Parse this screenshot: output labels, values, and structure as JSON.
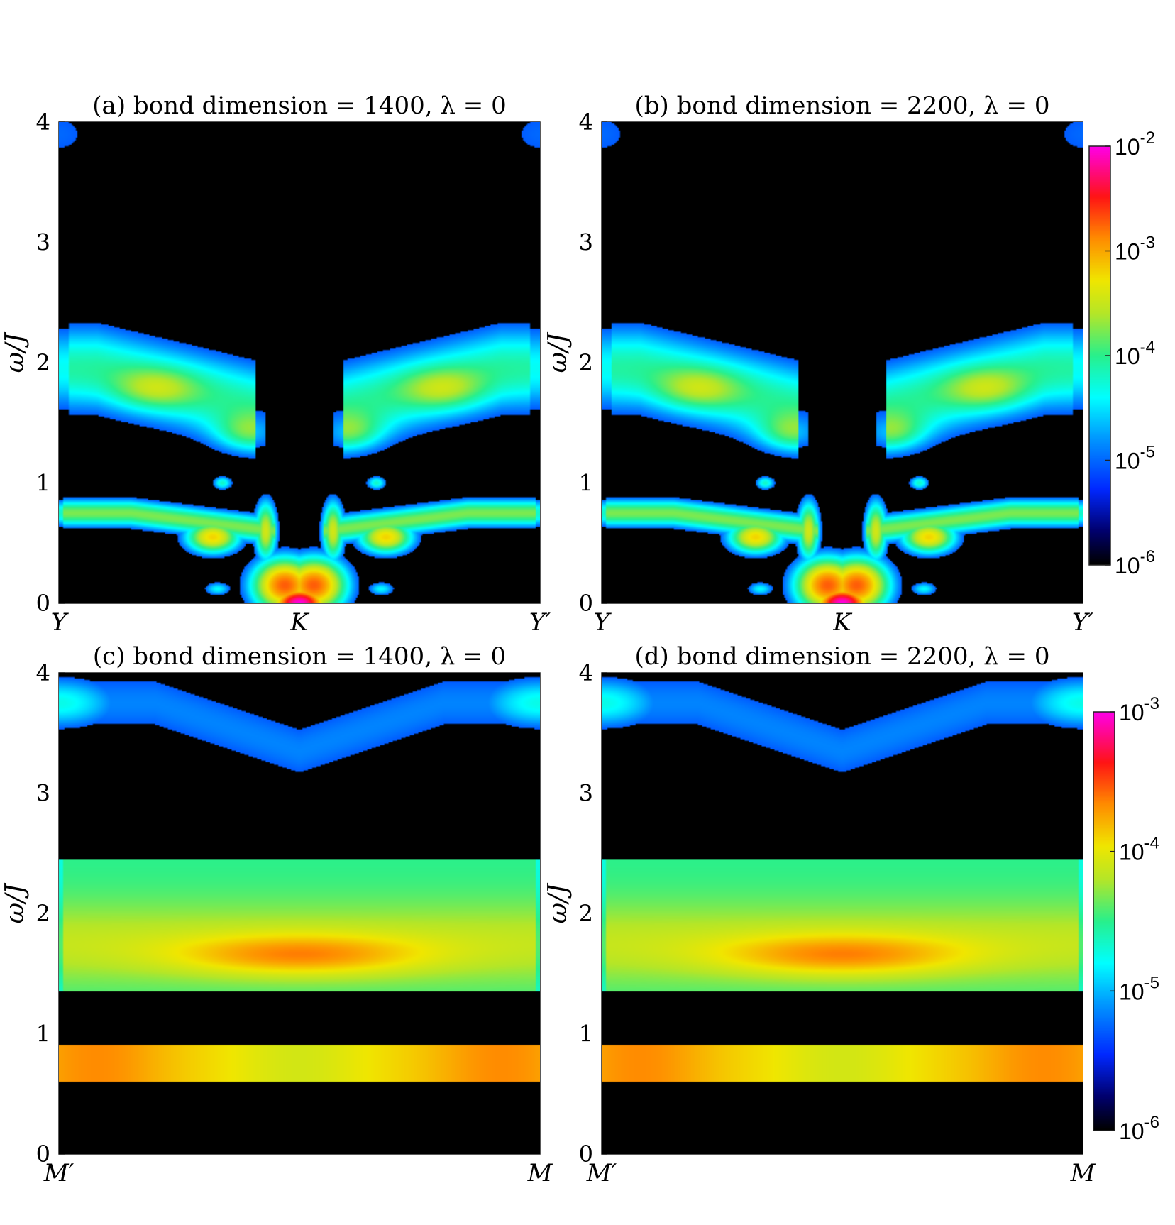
{
  "chart_data": [
    {
      "panel": "a",
      "type": "heatmap",
      "title": "(a) bond dimension = 1400, λ = 0",
      "ylabel": "ω/J",
      "ylim": [
        0,
        4
      ],
      "yticks": [
        "0",
        "1",
        "2",
        "3",
        "4"
      ],
      "xticks": [
        "Y",
        "K",
        "Y′"
      ],
      "path": "YKY",
      "colorbar": {
        "scale": "log",
        "range": [
          1e-06,
          0.01
        ],
        "ticks": [
          "10-6",
          "10-5",
          "10-4",
          "10-3",
          "10-2"
        ],
        "colormap": "black-blue-cyan-green-yellow-orange-red-magenta"
      },
      "features": [
        {
          "omega": [
            3.4,
            4.0
          ],
          "level": "1e-5",
          "location": "near Y and Y′"
        },
        {
          "omega": [
            1.0,
            2.45
          ],
          "level": "1e-5 to 1e-4",
          "location": "wings from Y/Y′ toward K"
        },
        {
          "omega": [
            0.6,
            1.0
          ],
          "level": "1e-5 to 1e-3",
          "location": "lower branch"
        },
        {
          "omega": [
            0.0,
            0.2
          ],
          "level": "1e-2",
          "location": "K"
        }
      ]
    },
    {
      "panel": "b",
      "type": "heatmap",
      "title": "(b) bond dimension = 2200, λ = 0",
      "ylabel": "ω/J",
      "ylim": [
        0,
        4
      ],
      "yticks": [
        "0",
        "1",
        "2",
        "3",
        "4"
      ],
      "xticks": [
        "Y",
        "K",
        "Y′"
      ],
      "path": "YKY",
      "colorbar": {
        "scale": "log",
        "range": [
          1e-06,
          0.01
        ],
        "ticks": [
          "10-6",
          "10-5",
          "10-4",
          "10-3",
          "10-2"
        ],
        "colormap": "black-blue-cyan-green-yellow-orange-red-magenta"
      },
      "features": [
        {
          "omega": [
            3.4,
            4.0
          ],
          "level": "1e-5",
          "location": "near Y and Y′"
        },
        {
          "omega": [
            1.0,
            2.45
          ],
          "level": "1e-5 to 1e-4",
          "location": "wings from Y/Y′ toward K"
        },
        {
          "omega": [
            0.6,
            1.0
          ],
          "level": "1e-5 to 1e-3",
          "location": "lower branch"
        },
        {
          "omega": [
            0.0,
            0.2
          ],
          "level": "1e-2",
          "location": "K"
        }
      ]
    },
    {
      "panel": "c",
      "type": "heatmap",
      "title": "(c) bond dimension = 1400, λ = 0",
      "ylabel": "ω/J",
      "ylim": [
        0,
        4
      ],
      "yticks": [
        "0",
        "1",
        "2",
        "3",
        "4"
      ],
      "xticks": [
        "M′",
        "M"
      ],
      "path": "MM",
      "colorbar": {
        "scale": "log",
        "range": [
          1e-06,
          0.001
        ],
        "ticks": [
          "10-6",
          "10-5",
          "10-4",
          "10-3"
        ],
        "colormap": "black-blue-cyan-green-yellow-orange-red-magenta"
      },
      "features": [
        {
          "omega": [
            3.1,
            4.0
          ],
          "level": "1e-6 to 1e-5",
          "location": "top band"
        },
        {
          "omega": [
            1.4,
            2.45
          ],
          "level": "1e-5 to 1e-4",
          "location": "middle band, peak near 1.65"
        },
        {
          "omega": [
            0.6,
            0.9
          ],
          "level": "1e-4",
          "location": "flat band"
        }
      ]
    },
    {
      "panel": "d",
      "type": "heatmap",
      "title": "(d) bond dimension = 2200, λ = 0",
      "ylabel": "ω/J",
      "ylim": [
        0,
        4
      ],
      "yticks": [
        "0",
        "1",
        "2",
        "3",
        "4"
      ],
      "xticks": [
        "M′",
        "M"
      ],
      "path": "MM",
      "colorbar": {
        "scale": "log",
        "range": [
          1e-06,
          0.001
        ],
        "ticks": [
          "10-6",
          "10-5",
          "10-4",
          "10-3"
        ],
        "colormap": "black-blue-cyan-green-yellow-orange-red-magenta"
      },
      "features": [
        {
          "omega": [
            3.1,
            4.0
          ],
          "level": "1e-6 to 1e-5",
          "location": "top band"
        },
        {
          "omega": [
            1.4,
            2.45
          ],
          "level": "1e-5 to 1e-4",
          "location": "middle band, peak near 1.65"
        },
        {
          "omega": [
            0.6,
            0.9
          ],
          "level": "1e-4",
          "location": "flat band"
        }
      ]
    }
  ]
}
